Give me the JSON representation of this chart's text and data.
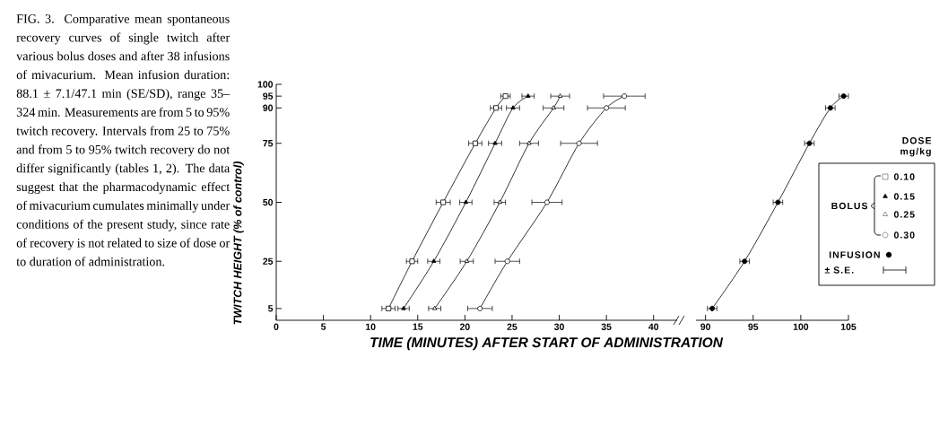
{
  "chart_data": [
    {
      "type": "line",
      "xlabel": "TIME (MINUTES) AFTER START OF ADMINISTRATION",
      "ylabel": "TWITCH HEIGHT (% of control)",
      "legend_title": "DOSE mg/kg",
      "legend": "right",
      "xlim": [
        0,
        42.5
      ],
      "xticks": [
        0,
        5,
        10,
        15,
        20,
        25,
        30,
        35,
        40
      ],
      "ylim": [
        0,
        100
      ],
      "yticks": [
        5,
        25,
        50,
        75,
        90,
        95,
        100
      ],
      "annotations": [
        "FIG. 3. Comparative mean spontaneous recovery curves of single twitch after various bolus doses and after 38 infusions of mivacurium. Mean infusion duration: 88.1 ± 7.1/47.1 min (SE/SD), range 35–324 min. Measurements are from 5 to 95% twitch recovery. Intervals from 25 to 75% and from 5 to 95% twitch recovery do not differ significantly (tables 1, 2). The data suggest that the pharmacodynamic effect of mivacurium cumulates minimally under conditions of the present study, since rate of recovery is not related to size of dose or to duration of administration.",
        "BOLUS",
        "± S.E."
      ],
      "series": [
        {
          "name": "0.10",
          "color": "#000000",
          "marker": "square",
          "x": [
            11.9,
            14.4,
            17.7,
            21.1,
            23.3,
            24.3
          ],
          "values": [
            5,
            25,
            50,
            75,
            90,
            95
          ],
          "xerrors": [
            0.7,
            0.6,
            0.75,
            0.7,
            0.6,
            0.5
          ]
        },
        {
          "name": "0.15",
          "color": "#000000",
          "marker": "triangle",
          "x": [
            13.5,
            16.7,
            20.1,
            23.2,
            25.1,
            26.7
          ],
          "values": [
            5,
            25,
            50,
            75,
            90,
            95
          ],
          "xerrors": [
            0.6,
            0.65,
            0.65,
            0.7,
            0.7,
            0.65
          ]
        },
        {
          "name": "0.25",
          "color": "#000000",
          "marker": "triangle",
          "x": [
            16.8,
            20.2,
            23.7,
            26.8,
            29.4,
            30.1
          ],
          "values": [
            5,
            25,
            50,
            75,
            90,
            95
          ],
          "xerrors": [
            0.65,
            0.7,
            0.6,
            1.0,
            1.1,
            1.0
          ]
        },
        {
          "name": "0.30",
          "color": "#000000",
          "marker": "circle",
          "x": [
            21.6,
            24.5,
            28.7,
            32.1,
            35.0,
            36.9
          ],
          "values": [
            5,
            25,
            50,
            75,
            90,
            95
          ],
          "xerrors": [
            1.3,
            1.3,
            1.6,
            1.95,
            2.0,
            2.2
          ]
        }
      ]
    },
    {
      "type": "line",
      "legend": "right",
      "tick_labels": "x",
      "xlim": [
        89,
        105
      ],
      "xticks": [
        90,
        95,
        100,
        105
      ],
      "ylim": [
        0,
        100
      ],
      "series": [
        {
          "name": "INFUSION",
          "color": "#000000",
          "marker": "circle",
          "x": [
            90.7,
            94.1,
            97.6,
            100.9,
            103.1,
            104.5
          ],
          "values": [
            5,
            25,
            50,
            75,
            90,
            95
          ],
          "xerrors": [
            0.5,
            0.5,
            0.5,
            0.5,
            0.5,
            0.5
          ]
        }
      ]
    }
  ]
}
